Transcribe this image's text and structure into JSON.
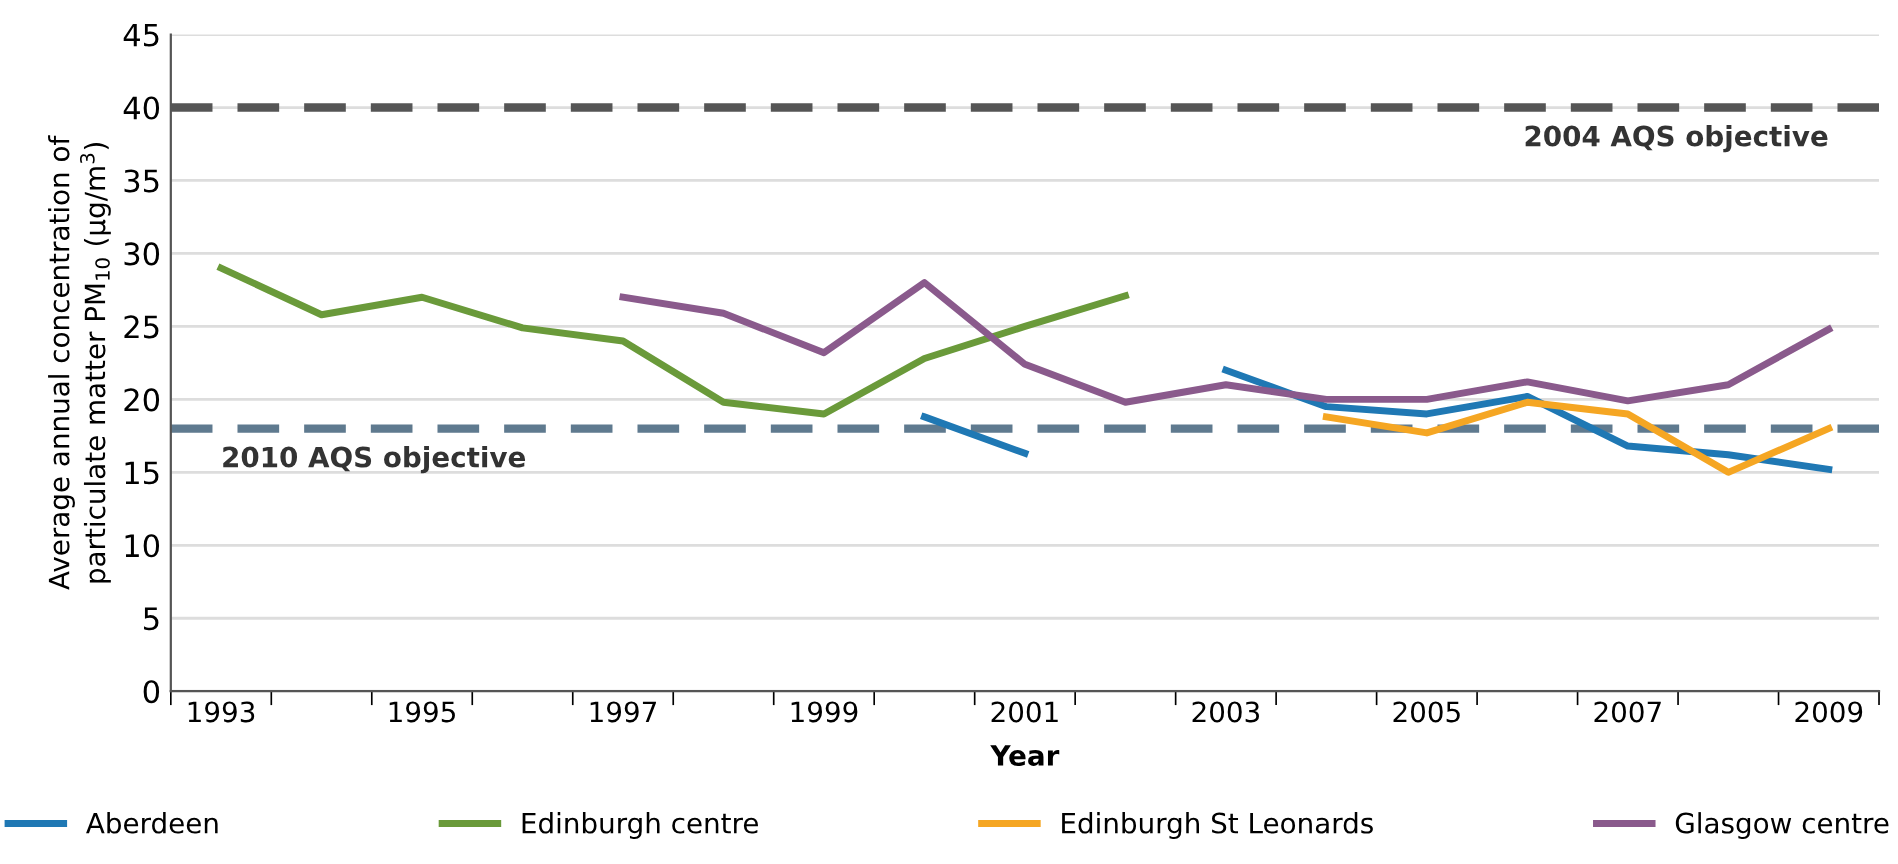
{
  "chart_data": {
    "type": "line",
    "xlabel": "Year",
    "ylabel": "Average annual concentration of\nparticulate matter PM$_{10}$ (µg/m$^{3}$)",
    "categories": [
      "1993",
      null,
      "1995",
      null,
      "1997",
      null,
      "1999",
      null,
      "2001",
      null,
      "2003",
      null,
      "2005",
      null,
      "2007",
      null,
      "2009"
    ],
    "series": [
      {
        "name": "Aberdeen",
        "color": "#1f78b4",
        "values": [
          null,
          null,
          null,
          null,
          null,
          null,
          null,
          18.8,
          16.3,
          null,
          22,
          19.5,
          19,
          20.2,
          16.8,
          16.2,
          15.2
        ]
      },
      {
        "name": "Edinburgh centre",
        "color": "#6a9a3a",
        "values": [
          29,
          25.8,
          27,
          24.9,
          24,
          19.8,
          19,
          22.8,
          25,
          27.1,
          null,
          null,
          null,
          null,
          null,
          null,
          null
        ]
      },
      {
        "name": "Edinburgh St Leonards",
        "color": "#f5a623",
        "values": [
          null,
          null,
          null,
          null,
          null,
          null,
          null,
          null,
          null,
          null,
          null,
          18.8,
          17.7,
          19.8,
          19,
          15,
          18
        ]
      },
      {
        "name": "Glasgow centre",
        "color": "#8a5a8c",
        "values": [
          null,
          null,
          null,
          null,
          27,
          25.9,
          23.2,
          28,
          22.4,
          19.8,
          21,
          20,
          20,
          21.2,
          19.9,
          21,
          24.8
        ]
      }
    ],
    "ylim": [
      0,
      45
    ],
    "yticks": [
      0,
      5,
      10,
      15,
      20,
      25,
      30,
      35,
      40,
      45
    ],
    "grid": "y",
    "legend": "bottom",
    "line_style": "solid",
    "marker": "none",
    "ref_lines": [
      {
        "axis": "y",
        "value": 40,
        "label": "2004 AQS objective",
        "color": "#555555",
        "line_style": "dashed"
      },
      {
        "axis": "y",
        "value": 18,
        "label": "2010 AQS objective",
        "color": "#5f7a8f",
        "line_style": "dashed"
      }
    ]
  }
}
